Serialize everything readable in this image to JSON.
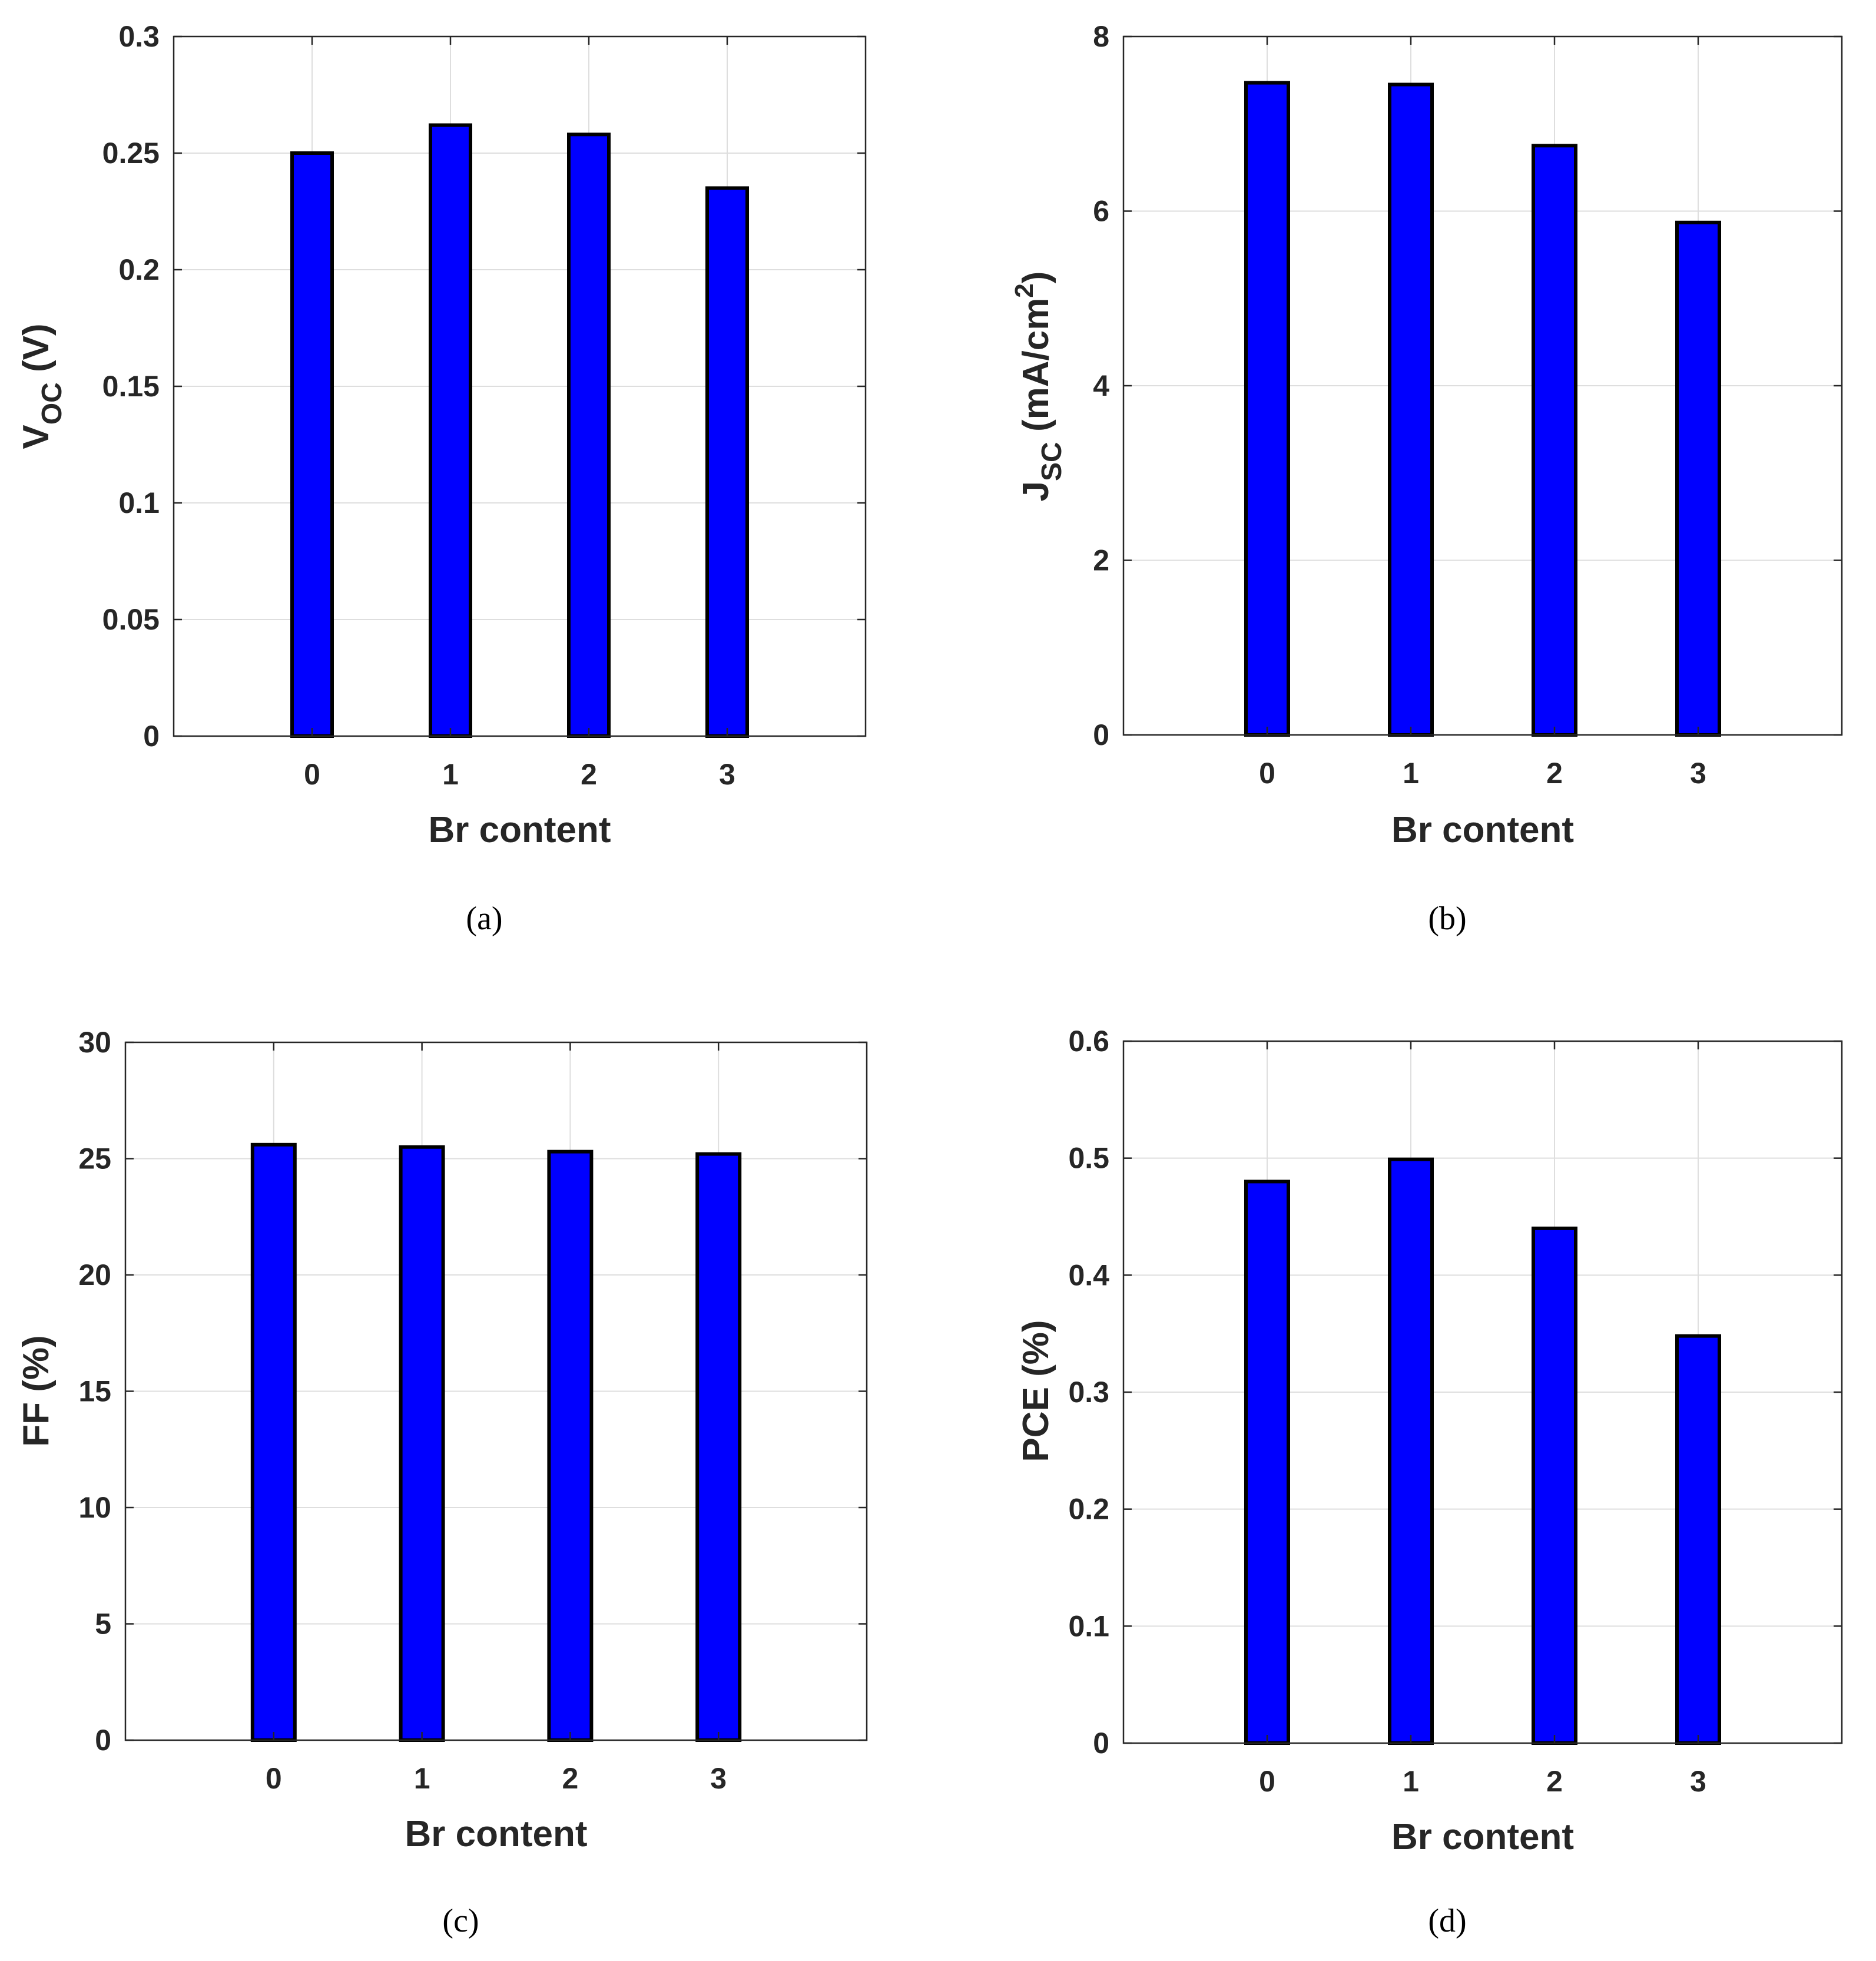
{
  "figure": {
    "colors": {
      "bar_fill": "#0000ff",
      "bar_edge": "#000000",
      "grid": "#dedede",
      "axes": "#262626",
      "background": "#ffffff"
    }
  },
  "chart_data": [
    {
      "type": "bar",
      "panel_label": "(a)",
      "categories": [
        "0",
        "1",
        "2",
        "3"
      ],
      "values": [
        0.25,
        0.262,
        0.258,
        0.235
      ],
      "xlabel": "Br content",
      "ylabel": {
        "main": "V",
        "sub": "OC",
        "rest": " (V)"
      },
      "ylim": [
        0,
        0.3
      ],
      "yticks": [
        "0",
        "0.05",
        "0.1",
        "0.15",
        "0.2",
        "0.25",
        "0.3"
      ],
      "grid": true
    },
    {
      "type": "bar",
      "panel_label": "(b)",
      "categories": [
        "0",
        "1",
        "2",
        "3"
      ],
      "values": [
        7.47,
        7.45,
        6.75,
        5.87
      ],
      "xlabel": "Br content",
      "ylabel": {
        "main": "J",
        "sub": "SC",
        "rest": " (mA/cm",
        "sup": "2",
        "end": ")"
      },
      "ylim": [
        0,
        8
      ],
      "yticks": [
        "0",
        "2",
        "4",
        "6",
        "8"
      ],
      "grid": true
    },
    {
      "type": "bar",
      "panel_label": "(c)",
      "categories": [
        "0",
        "1",
        "2",
        "3"
      ],
      "values": [
        25.6,
        25.5,
        25.3,
        25.2
      ],
      "xlabel": "Br content",
      "ylabel": {
        "main": "FF (%)"
      },
      "ylim": [
        0,
        30
      ],
      "yticks": [
        "0",
        "5",
        "10",
        "15",
        "20",
        "25",
        "30"
      ],
      "grid": true
    },
    {
      "type": "bar",
      "panel_label": "(d)",
      "categories": [
        "0",
        "1",
        "2",
        "3"
      ],
      "values": [
        0.48,
        0.499,
        0.44,
        0.348
      ],
      "xlabel": "Br content",
      "ylabel": {
        "main": "PCE (%)"
      },
      "ylim": [
        0,
        0.6
      ],
      "yticks": [
        "0",
        "0.1",
        "0.2",
        "0.3",
        "0.4",
        "0.5",
        "0.6"
      ],
      "grid": true
    }
  ]
}
